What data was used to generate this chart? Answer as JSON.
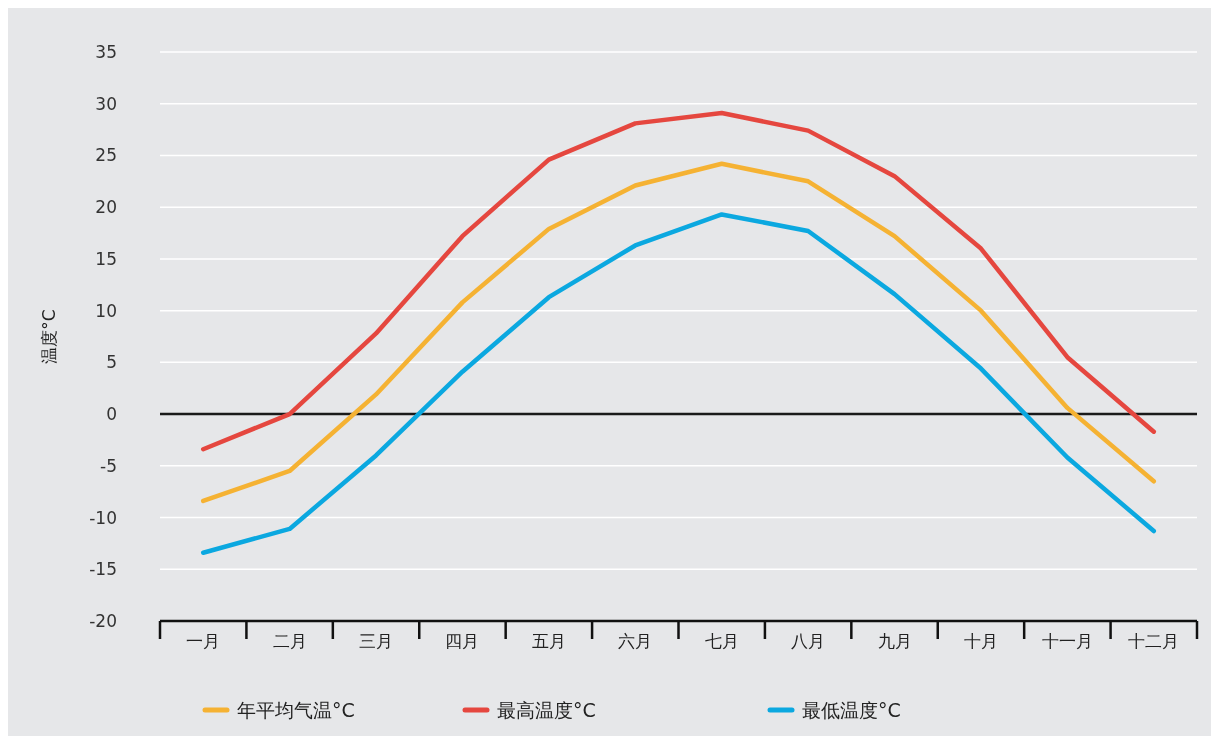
{
  "chart_data": {
    "type": "line",
    "ylabel": "温度°C",
    "categories": [
      "一月",
      "二月",
      "三月",
      "四月",
      "五月",
      "六月",
      "七月",
      "八月",
      "九月",
      "十月",
      "十一月",
      "十二月"
    ],
    "ylim": [
      -20,
      35
    ],
    "yticks": [
      -20,
      -15,
      -10,
      -5,
      0,
      5,
      10,
      15,
      20,
      25,
      30,
      35
    ],
    "grid": "y",
    "legend": "bottom",
    "ref_lines": [
      {
        "axis": "y",
        "value": 0,
        "color": "#1a1a1a"
      }
    ],
    "series": [
      {
        "name": "年平均气温°C",
        "color": "#f5b233",
        "values": [
          -8.4,
          -5.5,
          1.9,
          10.8,
          17.9,
          22.1,
          24.2,
          22.5,
          17.2,
          10.0,
          0.6,
          -6.5
        ]
      },
      {
        "name": "最高温度°C",
        "color": "#e5473f",
        "values": [
          -3.4,
          0,
          7.8,
          17.2,
          24.6,
          28.1,
          29.1,
          27.4,
          23.0,
          16.0,
          5.5,
          -1.7
        ]
      },
      {
        "name": "最低温度°C",
        "color": "#0ba8e0",
        "values": [
          -13.4,
          -11.1,
          -4.0,
          4.1,
          11.3,
          16.3,
          19.3,
          17.7,
          11.6,
          4.4,
          -4.2,
          -11.3
        ]
      }
    ]
  }
}
